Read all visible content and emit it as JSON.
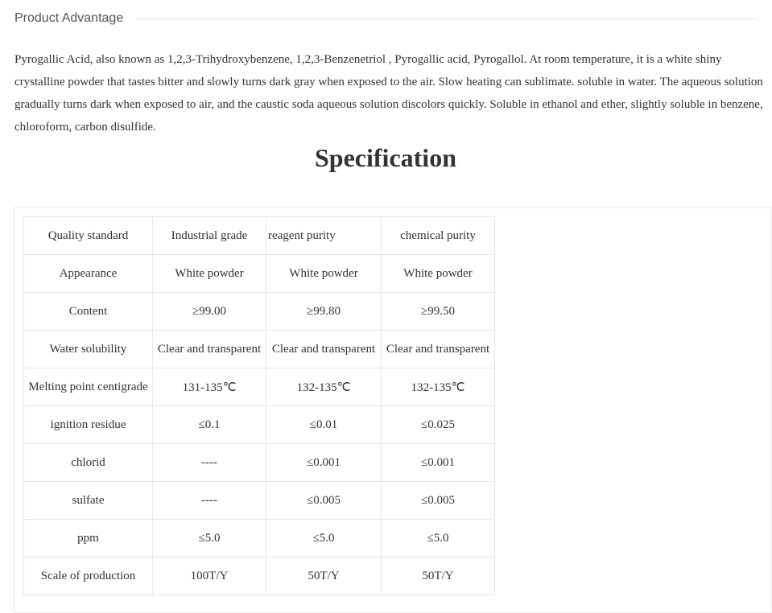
{
  "section_heading": "Product Advantage",
  "description": "Pyrogallic Acid, also known as 1,2,3-Trihydroxybenzene, 1,2,3-Benzenetriol , Pyrogallic acid, Pyrogallol. At room temperature, it is a white shiny crystalline powder that tastes bitter and slowly turns dark gray when exposed to the air. Slow heating can sublimate. soluble in water. The aqueous solution gradually turns dark when exposed to air, and the caustic soda aqueous solution discolors quickly. Soluble in ethanol and ether, slightly soluble in benzene, chloroform, carbon disulfide.",
  "spec_title": "Specification",
  "table": {
    "rows": [
      [
        "Quality standard",
        "Industrial grade",
        "reagent purity",
        "chemical purity"
      ],
      [
        "Appearance",
        "White powder",
        "White powder",
        "White powder"
      ],
      [
        "Content",
        "≥99.00",
        "≥99.80",
        "≥99.50"
      ],
      [
        "Water solubility",
        "Clear and transparent",
        "Clear and transparent",
        "Clear and transparent"
      ],
      [
        "Melting point centigrade",
        "131-135℃",
        "132-135℃",
        "132-135℃"
      ],
      [
        "ignition residue",
        "≤0.1",
        "≤0.01",
        "≤0.025"
      ],
      [
        "chlorid",
        "----",
        "≤0.001",
        "≤0.001"
      ],
      [
        "sulfate",
        "----",
        "≤0.005",
        "≤0.005"
      ],
      [
        "ppm",
        "≤5.0",
        "≤5.0",
        "≤5.0"
      ],
      [
        "Scale of production",
        "100T/Y",
        "50T/Y",
        "50T/Y"
      ]
    ]
  }
}
